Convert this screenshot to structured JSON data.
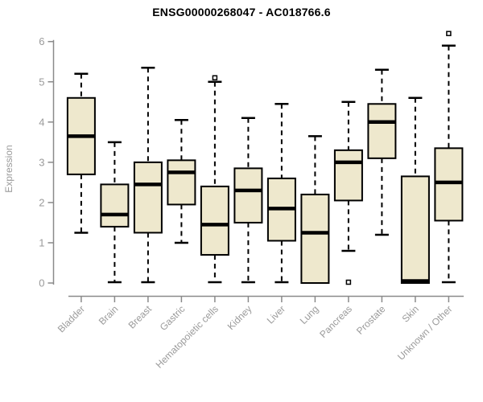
{
  "chart_data": {
    "type": "boxplot",
    "title": "ENSG00000268047 - AC018766.6",
    "ylabel": "Expression",
    "xlabel": "",
    "ylim": [
      0,
      6
    ],
    "y_ticks": [
      0,
      1,
      2,
      3,
      4,
      5,
      6
    ],
    "grid": false,
    "legend": false,
    "colors": {
      "box_fill": "#EEE8CD",
      "box_stroke": "#000000",
      "median": "#000000",
      "whisker": "#000000",
      "axis_line": "#8a8a8a",
      "tick_label": "#9a9a9a",
      "title_text": "#000000",
      "outlier_fill": "#ffffff"
    },
    "categories": [
      "Bladder",
      "Brain",
      "Breast",
      "Gastric",
      "Hematopoietic cells",
      "Kidney",
      "Liver",
      "Lung",
      "Pancreas",
      "Prostate",
      "Skin",
      "Unknown / Other"
    ],
    "series": [
      {
        "category": "Bladder",
        "whisker_low": 1.25,
        "q1": 2.7,
        "median": 3.65,
        "q3": 4.6,
        "whisker_high": 5.2,
        "outliers": []
      },
      {
        "category": "Brain",
        "whisker_low": 0.02,
        "q1": 1.4,
        "median": 1.7,
        "q3": 2.45,
        "whisker_high": 3.5,
        "outliers": []
      },
      {
        "category": "Breast",
        "whisker_low": 0.02,
        "q1": 1.25,
        "median": 2.45,
        "q3": 3.0,
        "whisker_high": 5.35,
        "outliers": []
      },
      {
        "category": "Gastric",
        "whisker_low": 1.0,
        "q1": 1.95,
        "median": 2.75,
        "q3": 3.05,
        "whisker_high": 4.05,
        "outliers": []
      },
      {
        "category": "Hematopoietic cells",
        "whisker_low": 0.02,
        "q1": 0.7,
        "median": 1.45,
        "q3": 2.4,
        "whisker_high": 5.0,
        "outliers": [
          5.1
        ]
      },
      {
        "category": "Kidney",
        "whisker_low": 0.02,
        "q1": 1.5,
        "median": 2.3,
        "q3": 2.85,
        "whisker_high": 4.1,
        "outliers": []
      },
      {
        "category": "Liver",
        "whisker_low": 0.02,
        "q1": 1.05,
        "median": 1.85,
        "q3": 2.6,
        "whisker_high": 4.45,
        "outliers": []
      },
      {
        "category": "Lung",
        "whisker_low": 0.0,
        "q1": 0.0,
        "median": 1.25,
        "q3": 2.2,
        "whisker_high": 3.65,
        "outliers": []
      },
      {
        "category": "Pancreas",
        "whisker_low": 0.8,
        "q1": 2.05,
        "median": 3.0,
        "q3": 3.3,
        "whisker_high": 4.5,
        "outliers": [
          0.02
        ]
      },
      {
        "category": "Prostate",
        "whisker_low": 1.2,
        "q1": 3.1,
        "median": 4.0,
        "q3": 4.45,
        "whisker_high": 5.3,
        "outliers": []
      },
      {
        "category": "Skin",
        "whisker_low": 0.0,
        "q1": 0.0,
        "median": 0.05,
        "q3": 2.65,
        "whisker_high": 4.6,
        "outliers": []
      },
      {
        "category": "Unknown / Other",
        "whisker_low": 0.02,
        "q1": 1.55,
        "median": 2.5,
        "q3": 3.35,
        "whisker_high": 5.9,
        "outliers": [
          6.2
        ]
      }
    ]
  }
}
